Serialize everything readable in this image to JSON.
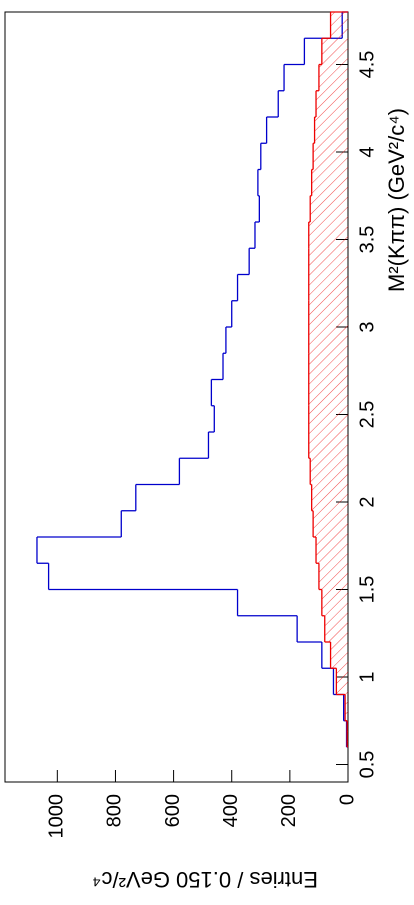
{
  "chart_data": {
    "type": "histogram",
    "x_label": "M²(Kππ) (GeV²/c⁴)",
    "y_label": "Entries / 0.150 GeV²/c⁴",
    "bins": [
      0.6,
      0.75,
      0.9,
      1.05,
      1.2,
      1.35,
      1.5,
      1.65,
      1.8,
      1.95,
      2.1,
      2.25,
      2.4,
      2.55,
      2.7,
      2.85,
      3.0,
      3.15,
      3.3,
      3.45,
      3.6,
      3.75,
      3.9,
      4.05,
      4.2,
      4.35,
      4.5,
      4.65,
      4.8
    ],
    "series": [
      {
        "color": "#0000cc",
        "values": [
          5,
          15,
          50,
          90,
          175,
          380,
          1030,
          1070,
          780,
          730,
          580,
          480,
          460,
          470,
          430,
          420,
          400,
          380,
          340,
          320,
          305,
          310,
          300,
          280,
          240,
          220,
          150,
          20
        ]
      },
      {
        "color": "#ee0000",
        "hatched": true,
        "values": [
          3,
          10,
          40,
          60,
          80,
          90,
          100,
          110,
          120,
          125,
          130,
          135,
          135,
          135,
          135,
          135,
          135,
          135,
          135,
          135,
          130,
          125,
          120,
          115,
          110,
          100,
          90,
          60
        ]
      }
    ],
    "xlim": [
      0.4,
      4.8
    ],
    "xticks": [
      0.5,
      1,
      1.5,
      2,
      2.5,
      3,
      3.5,
      4,
      4.5
    ],
    "ylim": [
      0,
      1180
    ],
    "yticks": [
      0,
      200,
      400,
      600,
      800,
      1000
    ]
  }
}
